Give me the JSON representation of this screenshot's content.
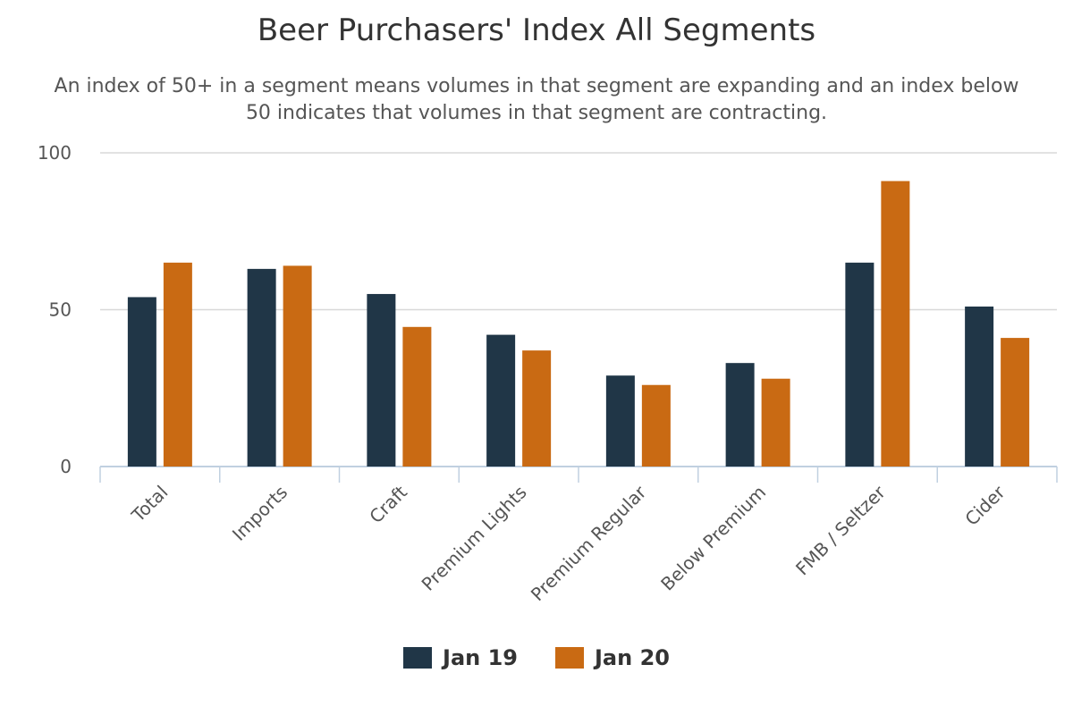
{
  "chart_data": {
    "type": "bar",
    "title": "Beer Purchasers' Index All Segments",
    "subtitle": "An index of 50+ in a segment means volumes in that segment are expanding and an index below 50 indicates that volumes in that segment are contracting.",
    "categories": [
      "Total",
      "Imports",
      "Craft",
      "Premium Lights",
      "Premium Regular",
      "Below Premium",
      "FMB / Seltzer",
      "Cider"
    ],
    "series": [
      {
        "name": "Jan 19",
        "color": "#203647",
        "values": [
          54,
          63,
          55,
          42,
          29,
          33,
          65,
          51
        ]
      },
      {
        "name": "Jan 20",
        "color": "#C96A13",
        "values": [
          65,
          64,
          44.5,
          37,
          26,
          28,
          91,
          41
        ]
      }
    ],
    "y_ticks": [
      "0",
      "50",
      "100"
    ],
    "ylim": [
      0,
      100
    ],
    "grid": true,
    "legend": "bottom-center"
  }
}
